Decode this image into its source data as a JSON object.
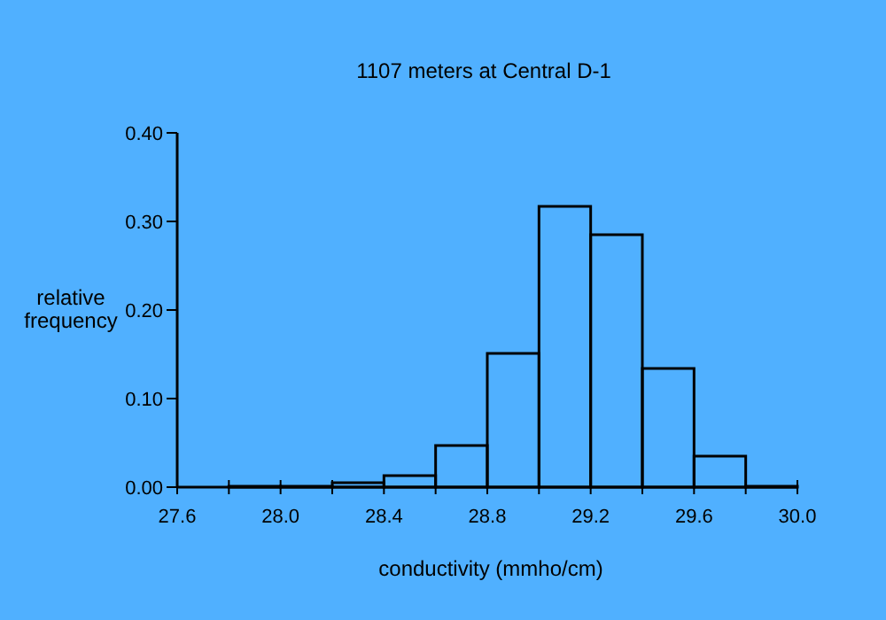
{
  "chart_data": {
    "type": "histogram",
    "title": "1107 meters at Central D-1",
    "xlabel": "conductivity (mmho/cm)",
    "ylabel": "relative\nfrequency",
    "bins": [
      27.8,
      28.0,
      28.2,
      28.4,
      28.6,
      28.8,
      29.0,
      29.2,
      29.4,
      29.6,
      29.8,
      30.0
    ],
    "values": [
      0.001,
      0.001,
      0.005,
      0.013,
      0.047,
      0.151,
      0.317,
      0.285,
      0.134,
      0.035,
      0.001
    ],
    "color": "#000000",
    "xlim": [
      27.6,
      30.0
    ],
    "xticks": [
      27.6,
      {
        "value": 27.8,
        "label": null
      },
      {
        "value": 28.0,
        "label": "28.0"
      },
      {
        "value": 28.2,
        "label": null
      },
      28.4,
      {
        "value": 28.6,
        "label": null
      },
      28.8,
      {
        "value": 29.0,
        "label": null
      },
      29.2,
      {
        "value": 29.4,
        "label": null
      },
      29.6,
      {
        "value": 29.8,
        "label": null
      },
      {
        "value": 30.0,
        "label": "30.0"
      }
    ],
    "ylim": [
      0,
      0.4
    ],
    "yticks": [
      {
        "value": 0,
        "label": "0.00"
      },
      {
        "value": 0.1,
        "label": "0.10"
      },
      {
        "value": 0.2,
        "label": "0.20"
      },
      {
        "value": 0.3,
        "label": "0.30"
      },
      {
        "value": 0.4,
        "label": "0.40"
      }
    ],
    "tick_labels": true
  }
}
